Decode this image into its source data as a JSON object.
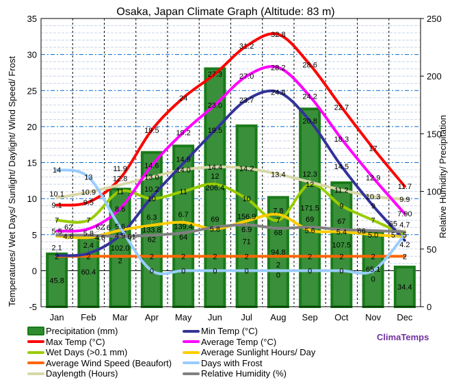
{
  "chart_data": {
    "type": "bar+line",
    "title": "Osaka, Japan Climate Graph (Altitude: 83 m)",
    "ylabel": "Temperatures/ Wet Days/ Sunlight/ Daylight/ Wind Speed/ Frost",
    "y2label": "Relative Humidity/ Precipitation",
    "ylim": [
      -5,
      35
    ],
    "yticks": [
      -5,
      0,
      5,
      10,
      15,
      20,
      25,
      30,
      35
    ],
    "y2lim": [
      0,
      250
    ],
    "y2ticks": [
      0,
      50,
      100,
      150,
      200,
      250
    ],
    "grid": true,
    "legend": "bottom",
    "categories": [
      "Jan",
      "Feb",
      "Mar",
      "Apr",
      "May",
      "Jun",
      "Jul",
      "Aug",
      "Sep",
      "Oct",
      "Nov",
      "Dec"
    ],
    "series": [
      {
        "name": "Precipitation (mm)",
        "type": "bar",
        "axis": "right",
        "color": "#2e8b2e",
        "values": [
          45.8,
          60.4,
          102.0,
          133.8,
          139.4,
          206.4,
          156.9,
          94.8,
          171.5,
          107.5,
          65.1,
          34.4
        ],
        "labels": [
          "45.8",
          "60.4",
          "102.0",
          "133.8",
          "139.4",
          "206.4",
          "156.9",
          "94.8",
          "171.5",
          "107.5",
          "65.1",
          "34.4"
        ]
      },
      {
        "name": "Max Temp (°C)",
        "type": "line",
        "axis": "left",
        "color": "#ff0000",
        "values": [
          9.1,
          9.5,
          12.8,
          19.5,
          24,
          27.3,
          31.2,
          32.8,
          28.6,
          22.7,
          17,
          11.7
        ],
        "labels": [
          "9.1",
          "9.5",
          "12.8",
          "19.5",
          "24",
          "27.3",
          "31.2",
          "32.8",
          "28.6",
          "22.7",
          "17",
          "11.7"
        ]
      },
      {
        "name": "Wet Days (>0.1 mm)",
        "type": "line",
        "axis": "left",
        "color": "#99cc00",
        "values": [
          7,
          7,
          11,
          10,
          11,
          12,
          10,
          7,
          12,
          9,
          7,
          5
        ],
        "labels": [
          "7",
          "7",
          "11",
          "10",
          "11",
          "12",
          "10",
          "7",
          "12",
          "9",
          "7",
          "5"
        ]
      },
      {
        "name": "Average Wind Speed (Beaufort)",
        "type": "line",
        "axis": "left",
        "color": "#ff6600",
        "values": [
          2,
          2,
          2,
          2,
          2,
          2,
          2,
          2,
          2,
          2,
          2,
          2
        ],
        "labels": [
          "2",
          "2",
          "2",
          "2",
          "2",
          "2",
          "2",
          "2",
          "2",
          "2",
          "2",
          "2"
        ]
      },
      {
        "name": "Daylength (Hours)",
        "type": "line",
        "axis": "left",
        "color": "#d8d8a8",
        "values": [
          10.1,
          10.9,
          11.9,
          13.0,
          14.0,
          14.4,
          14.2,
          13.4,
          12.3,
          11.2,
          10.3,
          9.9
        ],
        "labels": [
          "10.1",
          "10.9",
          "11.9",
          "13.0",
          "14.0",
          "14.4",
          "14.2",
          "13.4",
          "12.3",
          "11.2",
          "10.3",
          "9.9"
        ]
      },
      {
        "name": "Min Temp (°C)",
        "type": "line",
        "axis": "left",
        "color": "#333399",
        "values": [
          2.1,
          2.4,
          4.9,
          10.2,
          14.9,
          19.5,
          23.7,
          24.8,
          20.8,
          14.5,
          9,
          4.2
        ],
        "labels": [
          "2.1",
          "2.4",
          "4.9",
          "10.2",
          "14.9",
          "19.5",
          "23.7",
          "24.8",
          "20.8",
          "14.5",
          "9",
          "4.2"
        ]
      },
      {
        "name": "Average Temp (°C)",
        "type": "line",
        "axis": "left",
        "color": "#ff00ff",
        "values": [
          5.5,
          5.8,
          8.6,
          14.6,
          19.2,
          23.0,
          27.0,
          28.2,
          24.2,
          18.3,
          12.9,
          7.9
        ],
        "labels": [
          "5.5",
          "5.8",
          "8.6",
          "14.6",
          "19.2",
          "23.0",
          "27.0",
          "28.2",
          "24.2",
          "18.3",
          "12.9",
          "7.90"
        ]
      },
      {
        "name": "Average Sunlight Hours/ Day",
        "type": "line",
        "axis": "left",
        "color": "#ffcc00",
        "values": [
          4.8,
          4.6,
          5.6,
          6.3,
          6.7,
          5.8,
          6.9,
          7.8,
          5.6,
          5.4,
          5.0,
          4.7
        ],
        "labels": [
          "4.8",
          "4.6",
          "5.6",
          "6.3",
          "6.7",
          "5.8",
          "6.9",
          "7.8",
          "5.6",
          "5.4",
          "5.0",
          "4.7"
        ]
      },
      {
        "name": "Days with Frost",
        "type": "line",
        "axis": "left",
        "color": "#99ccff",
        "values": [
          14,
          13,
          6,
          0,
          0,
          0,
          0,
          0,
          0,
          0,
          0,
          5
        ],
        "labels": [
          "14",
          "13",
          "6",
          "0",
          "0",
          "0",
          "0",
          "0",
          "0",
          "0",
          "0",
          "5"
        ]
      },
      {
        "name": "Relative Humidity (%)",
        "type": "line",
        "axis": "right",
        "color": "#808080",
        "values": [
          62,
          62,
          61,
          62,
          64,
          69,
          71,
          68,
          69,
          67,
          66,
          65
        ],
        "labels": [
          "62",
          "62",
          "61",
          "62",
          "64",
          "69",
          "71",
          "68",
          "69",
          "67",
          "66",
          "65"
        ]
      }
    ]
  },
  "legend_order": [
    0,
    5,
    1,
    6,
    2,
    7,
    3,
    8,
    4,
    9
  ],
  "brand": "ClimaTemps"
}
